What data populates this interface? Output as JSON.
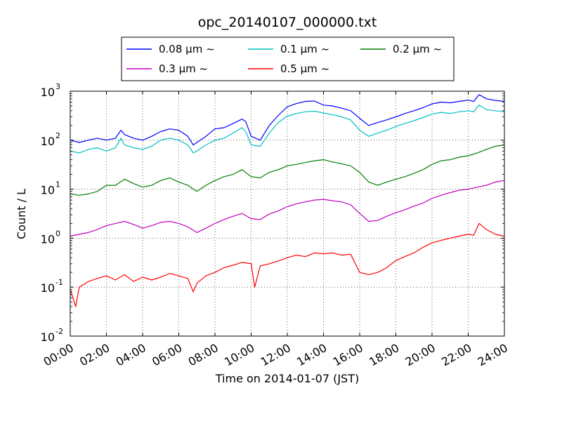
{
  "chart_data": {
    "type": "line",
    "title": "opc_20140107_000000.txt",
    "xlabel": "Time on 2014-01-07 (JST)",
    "ylabel": "Count / L",
    "x_unit": "hours",
    "xlim": [
      0,
      24
    ],
    "ylim": [
      0.01,
      1000
    ],
    "y_scale": "log",
    "grid": true,
    "legend_position": "top-center, above plot",
    "x_ticks": [
      {
        "value": 0,
        "label": "00:00"
      },
      {
        "value": 2,
        "label": "02:00"
      },
      {
        "value": 4,
        "label": "04:00"
      },
      {
        "value": 6,
        "label": "06:00"
      },
      {
        "value": 8,
        "label": "08:00"
      },
      {
        "value": 10,
        "label": "10:00"
      },
      {
        "value": 12,
        "label": "12:00"
      },
      {
        "value": 14,
        "label": "14:00"
      },
      {
        "value": 16,
        "label": "16:00"
      },
      {
        "value": 18,
        "label": "18:00"
      },
      {
        "value": 20,
        "label": "20:00"
      },
      {
        "value": 22,
        "label": "22:00"
      },
      {
        "value": 24,
        "label": "24:00"
      }
    ],
    "y_ticks": [
      {
        "value": 0.01,
        "base": "10",
        "exp": "-2"
      },
      {
        "value": 0.1,
        "base": "10",
        "exp": "-1"
      },
      {
        "value": 1,
        "base": "10",
        "exp": "0"
      },
      {
        "value": 10,
        "base": "10",
        "exp": "1"
      },
      {
        "value": 100,
        "base": "10",
        "exp": "2"
      },
      {
        "value": 1000,
        "base": "10",
        "exp": "3"
      }
    ],
    "series": [
      {
        "name": "0.08 μm ~",
        "color": "#0000ff",
        "x": [
          0,
          0.5,
          1,
          1.5,
          2,
          2.5,
          2.8,
          3,
          3.5,
          4,
          4.5,
          5,
          5.5,
          6,
          6.5,
          6.8,
          7,
          7.5,
          8,
          8.5,
          9,
          9.5,
          9.7,
          10,
          10.5,
          11,
          11.5,
          12,
          12.5,
          13,
          13.5,
          14,
          14.5,
          15,
          15.5,
          16,
          16.5,
          17,
          17.5,
          18,
          18.5,
          19,
          19.5,
          20,
          20.5,
          21,
          21.5,
          22,
          22.3,
          22.6,
          23,
          23.5,
          24
        ],
        "y": [
          100,
          90,
          100,
          110,
          100,
          110,
          160,
          130,
          110,
          100,
          120,
          150,
          170,
          160,
          120,
          80,
          90,
          120,
          170,
          180,
          220,
          270,
          240,
          120,
          100,
          200,
          320,
          480,
          560,
          620,
          630,
          520,
          500,
          450,
          400,
          280,
          200,
          230,
          260,
          300,
          350,
          400,
          460,
          550,
          600,
          580,
          620,
          660,
          620,
          850,
          700,
          650,
          620
        ]
      },
      {
        "name": "0.1 μm ~",
        "color": "#00bfbf",
        "x": [
          0,
          0.5,
          1,
          1.5,
          2,
          2.5,
          2.8,
          3,
          3.5,
          4,
          4.5,
          5,
          5.5,
          6,
          6.5,
          6.8,
          7,
          7.5,
          8,
          8.5,
          9,
          9.5,
          9.7,
          10,
          10.5,
          11,
          11.5,
          12,
          12.5,
          13,
          13.5,
          14,
          14.5,
          15,
          15.5,
          16,
          16.5,
          17,
          17.5,
          18,
          18.5,
          19,
          19.5,
          20,
          20.5,
          21,
          21.5,
          22,
          22.3,
          22.6,
          23,
          23.5,
          24
        ],
        "y": [
          60,
          55,
          65,
          70,
          60,
          70,
          110,
          80,
          70,
          65,
          75,
          100,
          110,
          100,
          80,
          55,
          60,
          80,
          100,
          110,
          140,
          180,
          150,
          80,
          75,
          140,
          230,
          310,
          350,
          380,
          390,
          360,
          330,
          300,
          260,
          160,
          120,
          140,
          160,
          190,
          220,
          250,
          290,
          340,
          370,
          350,
          380,
          400,
          380,
          520,
          420,
          400,
          380
        ]
      },
      {
        "name": "0.2 μm ~",
        "color": "#008000",
        "x": [
          0,
          0.5,
          1,
          1.5,
          2,
          2.5,
          3,
          3.5,
          4,
          4.5,
          5,
          5.5,
          6,
          6.5,
          7,
          7.5,
          8,
          8.5,
          9,
          9.5,
          10,
          10.5,
          11,
          11.5,
          12,
          12.5,
          13,
          13.5,
          14,
          14.5,
          15,
          15.5,
          16,
          16.5,
          17,
          17.5,
          18,
          18.5,
          19,
          19.5,
          20,
          20.5,
          21,
          21.5,
          22,
          22.5,
          23,
          23.5,
          24
        ],
        "y": [
          8,
          7.5,
          8,
          9,
          12,
          12,
          16,
          13,
          11,
          12,
          15,
          17,
          14,
          12,
          9,
          12,
          15,
          18,
          20,
          25,
          18,
          17,
          22,
          25,
          30,
          32,
          35,
          38,
          40,
          36,
          33,
          30,
          22,
          14,
          12,
          14,
          16,
          18,
          21,
          25,
          32,
          38,
          40,
          45,
          48,
          55,
          65,
          75,
          80
        ]
      },
      {
        "name": "0.3 μm ~",
        "color": "#bf00bf",
        "x": [
          0,
          0.5,
          1,
          1.5,
          2,
          2.5,
          3,
          3.5,
          4,
          4.5,
          5,
          5.5,
          6,
          6.5,
          7,
          7.5,
          8,
          8.5,
          9,
          9.5,
          10,
          10.5,
          11,
          11.5,
          12,
          12.5,
          13,
          13.5,
          14,
          14.5,
          15,
          15.5,
          16,
          16.5,
          17,
          17.5,
          18,
          18.5,
          19,
          19.5,
          20,
          20.5,
          21,
          21.5,
          22,
          22.5,
          23,
          23.5,
          24
        ],
        "y": [
          1.1,
          1.2,
          1.3,
          1.5,
          1.8,
          2,
          2.2,
          1.9,
          1.6,
          1.8,
          2.1,
          2.2,
          2,
          1.7,
          1.3,
          1.6,
          2,
          2.4,
          2.8,
          3.2,
          2.5,
          2.4,
          3.1,
          3.6,
          4.4,
          5,
          5.5,
          6,
          6.2,
          5.8,
          5.5,
          4.8,
          3.2,
          2.2,
          2.3,
          2.8,
          3.3,
          3.8,
          4.5,
          5.2,
          6.5,
          7.5,
          8.5,
          9.5,
          10,
          11,
          12,
          14,
          15
        ]
      },
      {
        "name": "0.5 μm ~",
        "color": "#ff0000",
        "x": [
          0,
          0.15,
          0.3,
          0.5,
          1,
          1.5,
          2,
          2.5,
          3,
          3.5,
          4,
          4.5,
          5,
          5.5,
          6,
          6.5,
          6.8,
          7,
          7.5,
          8,
          8.5,
          9,
          9.5,
          10,
          10.2,
          10.5,
          11,
          11.5,
          12,
          12.5,
          13,
          13.5,
          14,
          14.5,
          15,
          15.5,
          16,
          16.5,
          17,
          17.5,
          18,
          18.5,
          19,
          19.5,
          20,
          20.5,
          21,
          21.5,
          22,
          22.3,
          22.6,
          23,
          23.5,
          24
        ],
        "y": [
          0.09,
          0.06,
          0.04,
          0.1,
          0.13,
          0.15,
          0.17,
          0.14,
          0.18,
          0.13,
          0.16,
          0.14,
          0.16,
          0.19,
          0.17,
          0.15,
          0.08,
          0.12,
          0.17,
          0.2,
          0.25,
          0.28,
          0.32,
          0.3,
          0.1,
          0.27,
          0.3,
          0.34,
          0.4,
          0.45,
          0.42,
          0.5,
          0.48,
          0.5,
          0.45,
          0.47,
          0.2,
          0.18,
          0.2,
          0.25,
          0.35,
          0.42,
          0.5,
          0.65,
          0.8,
          0.9,
          1.0,
          1.1,
          1.2,
          1.15,
          2.0,
          1.5,
          1.2,
          1.1
        ]
      }
    ]
  }
}
